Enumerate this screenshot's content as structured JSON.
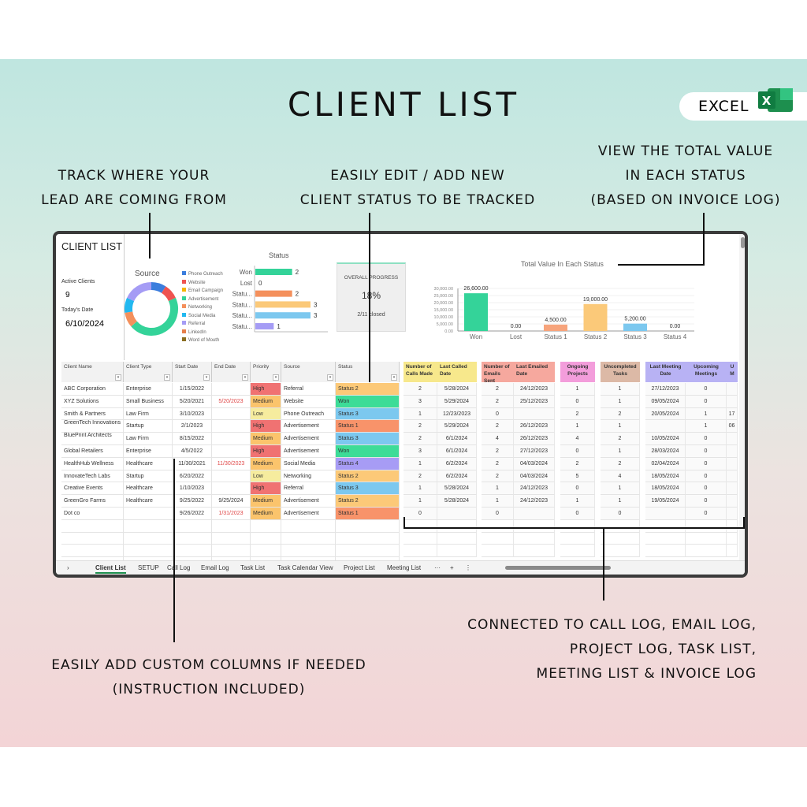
{
  "page": {
    "title": "CLIENT LIST",
    "badge": "EXCEL",
    "badge_logo": "X"
  },
  "annotations": {
    "source": [
      "TRACK WHERE YOUR",
      "LEAD ARE COMING FROM"
    ],
    "status": [
      "EASILY EDIT / ADD NEW",
      "CLIENT STATUS TO BE TRACKED"
    ],
    "value": [
      "VIEW THE TOTAL VALUE",
      "IN EACH STATUS",
      "(BASED ON INVOICE LOG)"
    ],
    "columns": [
      "EASILY ADD CUSTOM COLUMNS IF NEEDED",
      "(INSTRUCTION INCLUDED)"
    ],
    "connected": [
      "CONNECTED TO CALL LOG, EMAIL LOG,",
      "PROJECT LOG, TASK LIST,",
      "MEETING LIST & INVOICE LOG"
    ]
  },
  "dashboard": {
    "title": "CLIENT LIST",
    "active_label": "Active Clients",
    "active_value": "9",
    "date_label": "Today's Date",
    "date_value": "6/10/2024",
    "progress": {
      "label": "OVERALL PROGRESS",
      "percent": "18%",
      "closed": "2/11 closed"
    }
  },
  "chart_data": [
    {
      "type": "pie",
      "title": "Source",
      "categories": [
        "Phone Outreach",
        "Website",
        "Email Campaign",
        "Advertisement",
        "Networking",
        "Social Media",
        "Referral",
        "LinkedIn",
        "Word of Mouth"
      ],
      "values": [
        1,
        1,
        0,
        5,
        1,
        1,
        2,
        0,
        0
      ],
      "colors": [
        "#3b7ddd",
        "#ef5350",
        "#f5b400",
        "#34d399",
        "#f4905c",
        "#22b8f0",
        "#a59cf5",
        "#e67e4a",
        "#8a6d1f"
      ],
      "legend": "right"
    },
    {
      "type": "bar",
      "orientation": "horizontal",
      "title": "Status",
      "categories": [
        "Won",
        "Lost",
        "Statu...",
        "Statu...",
        "Statu...",
        "Statu..."
      ],
      "values": [
        2,
        0,
        2,
        3,
        3,
        1
      ],
      "colors": [
        "#34d399",
        "#cccccc",
        "#f4905c",
        "#fbc979",
        "#7cc8ef",
        "#a59cf5"
      ]
    },
    {
      "type": "bar",
      "title": "Total Value In Each Status",
      "categories": [
        "Won",
        "Lost",
        "Status 1",
        "Status 2",
        "Status 3",
        "Status 4"
      ],
      "values": [
        26600,
        0,
        4500,
        19000,
        5200,
        0
      ],
      "labels": [
        "26,600.00",
        "0.00",
        "4,500.00",
        "19,000.00",
        "5,200.00",
        "0.00"
      ],
      "colors": [
        "#34d399",
        "#cccccc",
        "#f7a47c",
        "#fbc979",
        "#7cc8ef",
        "#a59cf5"
      ],
      "ylim": [
        0,
        30000
      ],
      "yticks": [
        "30,000.00",
        "25,000.00",
        "20,000.00",
        "15,000.00",
        "10,000.00",
        "5,000.00",
        "0.00"
      ]
    }
  ],
  "table": {
    "headers": [
      "Client Name",
      "Client Type",
      "Start Date",
      "End Date",
      "Priority",
      "Source",
      "Status"
    ],
    "rows": [
      [
        "ABC Corporation",
        "Enterprise",
        "1/15/2022",
        "",
        "High",
        "Referral",
        "Status 2"
      ],
      [
        "XYZ Solutions",
        "Small Business",
        "5/20/2021",
        "5/20/2023",
        "Medium",
        "Website",
        "Won"
      ],
      [
        "Smith & Partners",
        "Law Firm",
        "3/10/2023",
        "",
        "Low",
        "Phone Outreach",
        "Status 3"
      ],
      [
        "GreenTech Innovations",
        "Startup",
        "2/1/2023",
        "",
        "High",
        "Advertisement",
        "Status 1"
      ],
      [
        "BluePrint Architects",
        "Law Firm",
        "8/15/2022",
        "",
        "Medium",
        "Advertisement",
        "Status 3"
      ],
      [
        "Global Retailers",
        "Enterprise",
        "4/5/2022",
        "",
        "High",
        "Advertisement",
        "Won"
      ],
      [
        "HealthHub Wellness",
        "Healthcare",
        "11/30/2021",
        "11/30/2023",
        "Medium",
        "Social Media",
        "Status 4"
      ],
      [
        "InnovateTech Labs",
        "Startup",
        "6/20/2022",
        "",
        "Low",
        "Networking",
        "Status 2"
      ],
      [
        "Creative Events",
        "Healthcare",
        "1/10/2023",
        "",
        "High",
        "Referral",
        "Status 3"
      ],
      [
        "GreenGro Farms",
        "Healthcare",
        "9/25/2022",
        "9/25/2024",
        "Medium",
        "Advertisement",
        "Status 2"
      ],
      [
        "Dot co",
        "",
        "9/26/2022",
        "1/31/2023",
        "Medium",
        "Advertisement",
        "Status 1"
      ]
    ],
    "end_date_red": [
      false,
      true,
      false,
      false,
      false,
      false,
      true,
      false,
      false,
      false,
      true
    ],
    "priority_colors": {
      "High": "#f07272",
      "Medium": "#fbc46c",
      "Low": "#f6ec9e"
    },
    "status_colors": {
      "Status 1": "#f8936a",
      "Status 2": "#fcc978",
      "Status 3": "#7cc8ef",
      "Status 4": "#a79cf5",
      "Won": "#3ddc97",
      "Lost": "#dddddd"
    }
  },
  "linked": {
    "headers": [
      "Number of Calls Made",
      "Last Called Date",
      "Number of Emails Sent",
      "Last Emailed Date",
      "Ongoing Projects",
      "Uncompleted Tasks",
      "Last Meeting Date",
      "Upcoming Meetings",
      "U M"
    ],
    "header_colors": [
      "#f7e88c",
      "#f7e88c",
      "#f6a89e",
      "#f6a89e",
      "#f39ddb",
      "#dcb9a6",
      "#b8b2f4",
      "#b8b2f4",
      "#b8b2f4"
    ],
    "rows": [
      [
        "2",
        "5/28/2024",
        "2",
        "24/12/2023",
        "1",
        "1",
        "27/12/2023",
        "0",
        ""
      ],
      [
        "3",
        "5/29/2024",
        "2",
        "25/12/2023",
        "0",
        "1",
        "09/05/2024",
        "0",
        ""
      ],
      [
        "1",
        "12/23/2023",
        "0",
        "",
        "2",
        "2",
        "20/05/2024",
        "1",
        "17"
      ],
      [
        "2",
        "5/29/2024",
        "2",
        "26/12/2023",
        "1",
        "1",
        "",
        "1",
        "06"
      ],
      [
        "2",
        "6/1/2024",
        "4",
        "26/12/2023",
        "4",
        "2",
        "10/05/2024",
        "0",
        ""
      ],
      [
        "3",
        "6/1/2024",
        "2",
        "27/12/2023",
        "0",
        "1",
        "28/03/2024",
        "0",
        ""
      ],
      [
        "1",
        "6/2/2024",
        "2",
        "04/03/2024",
        "2",
        "2",
        "02/04/2024",
        "0",
        ""
      ],
      [
        "2",
        "6/2/2024",
        "2",
        "04/03/2024",
        "5",
        "4",
        "18/05/2024",
        "0",
        ""
      ],
      [
        "1",
        "5/28/2024",
        "1",
        "24/12/2023",
        "0",
        "1",
        "18/05/2024",
        "0",
        ""
      ],
      [
        "1",
        "5/28/2024",
        "1",
        "24/12/2023",
        "1",
        "1",
        "19/05/2024",
        "0",
        ""
      ],
      [
        "0",
        "",
        "0",
        "",
        "0",
        "0",
        "",
        "0",
        ""
      ]
    ]
  },
  "sheet_tabs": [
    "Client List",
    "SETUP",
    "Call Log",
    "Email Log",
    "Task List",
    "Task Calendar View",
    "Project List",
    "Meeting List"
  ],
  "active_tab": "Client List",
  "tab_controls": {
    "prev": "›",
    "more": "···",
    "add": "+",
    "sep": "⋮"
  }
}
